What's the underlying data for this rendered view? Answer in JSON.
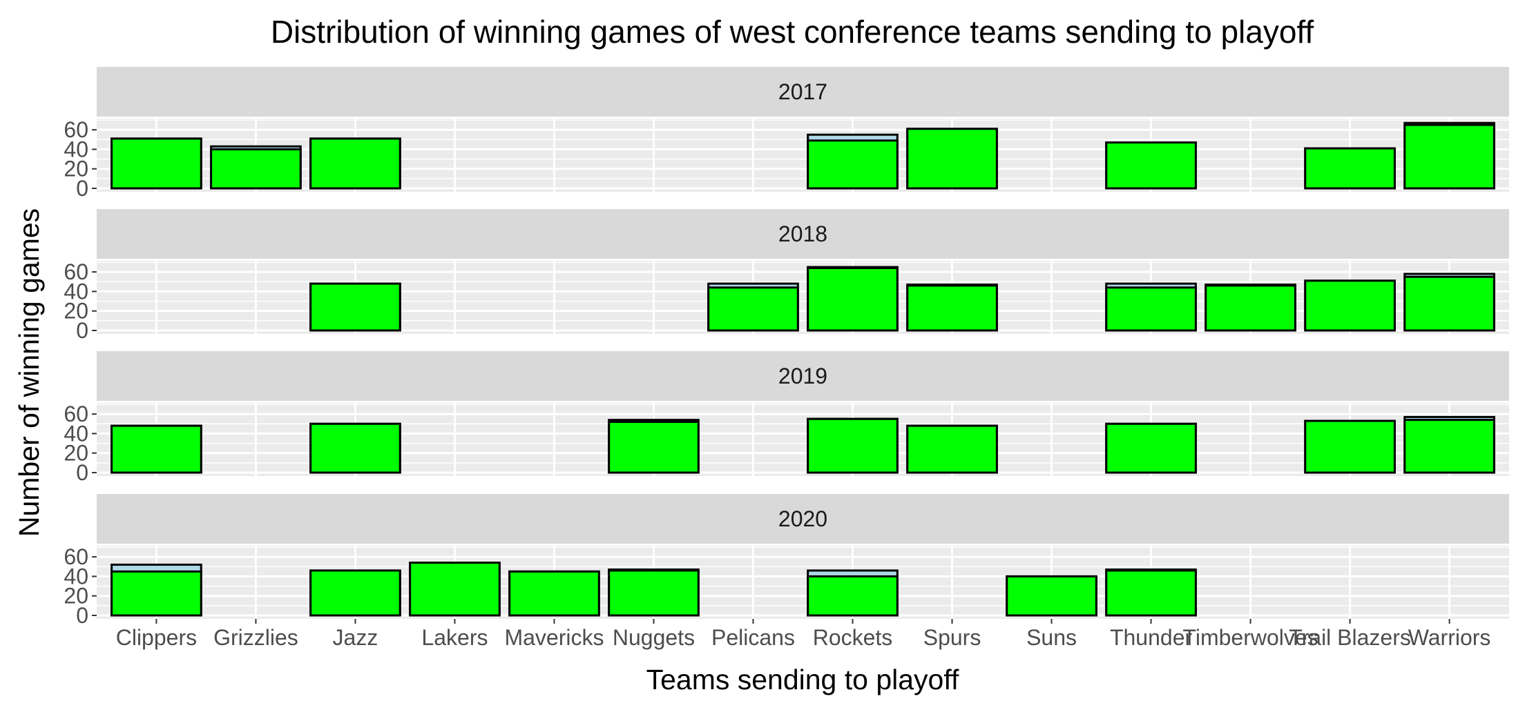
{
  "chart_data": {
    "type": "bar",
    "title": "Distribution of winning games of west conference teams sending to playoff",
    "xlabel": "Teams sending to playoff",
    "ylabel": "Number of winning games",
    "categories": [
      "Clippers",
      "Grizzlies",
      "Jazz",
      "Lakers",
      "Mavericks",
      "Nuggets",
      "Pelicans",
      "Rockets",
      "Spurs",
      "Suns",
      "Thunder",
      "Timberwolves",
      "Trail Blazers",
      "Warriors"
    ],
    "ylim": [
      0,
      70
    ],
    "yticks": [
      0,
      20,
      40,
      60
    ],
    "grid": true,
    "legend": "none",
    "facets": [
      {
        "label": "2017",
        "bars": [
          {
            "team": "Clippers",
            "outer": 51,
            "inner": 51
          },
          {
            "team": "Grizzlies",
            "outer": 43,
            "inner": 40
          },
          {
            "team": "Jazz",
            "outer": 51,
            "inner": 51
          },
          {
            "team": "Rockets",
            "outer": 55,
            "inner": 49
          },
          {
            "team": "Spurs",
            "outer": 61,
            "inner": 61
          },
          {
            "team": "Thunder",
            "outer": 47,
            "inner": 47
          },
          {
            "team": "Trail Blazers",
            "outer": 41,
            "inner": 41
          },
          {
            "team": "Warriors",
            "outer": 67,
            "inner": 65
          }
        ]
      },
      {
        "label": "2018",
        "bars": [
          {
            "team": "Jazz",
            "outer": 48,
            "inner": 48
          },
          {
            "team": "Pelicans",
            "outer": 48,
            "inner": 44
          },
          {
            "team": "Rockets",
            "outer": 65,
            "inner": 64
          },
          {
            "team": "Spurs",
            "outer": 47,
            "inner": 46
          },
          {
            "team": "Thunder",
            "outer": 48,
            "inner": 44
          },
          {
            "team": "Timberwolves",
            "outer": 47,
            "inner": 46
          },
          {
            "team": "Trail Blazers",
            "outer": 51,
            "inner": 51
          },
          {
            "team": "Warriors",
            "outer": 58,
            "inner": 55
          }
        ]
      },
      {
        "label": "2019",
        "bars": [
          {
            "team": "Clippers",
            "outer": 48,
            "inner": 48
          },
          {
            "team": "Jazz",
            "outer": 50,
            "inner": 50
          },
          {
            "team": "Nuggets",
            "outer": 54,
            "inner": 52
          },
          {
            "team": "Rockets",
            "outer": 55,
            "inner": 55
          },
          {
            "team": "Spurs",
            "outer": 48,
            "inner": 48
          },
          {
            "team": "Thunder",
            "outer": 50,
            "inner": 50
          },
          {
            "team": "Trail Blazers",
            "outer": 53,
            "inner": 53
          },
          {
            "team": "Warriors",
            "outer": 57,
            "inner": 54
          }
        ]
      },
      {
        "label": "2020",
        "bars": [
          {
            "team": "Clippers",
            "outer": 52,
            "inner": 45
          },
          {
            "team": "Jazz",
            "outer": 46,
            "inner": 46
          },
          {
            "team": "Lakers",
            "outer": 54,
            "inner": 54
          },
          {
            "team": "Mavericks",
            "outer": 45,
            "inner": 45
          },
          {
            "team": "Nuggets",
            "outer": 47,
            "inner": 46
          },
          {
            "team": "Rockets",
            "outer": 46,
            "inner": 40
          },
          {
            "team": "Suns",
            "outer": 40,
            "inner": 40
          },
          {
            "team": "Thunder",
            "outer": 47,
            "inner": 46
          }
        ]
      }
    ],
    "colors": {
      "bar_fill": "#00ff00",
      "outer_fill": "#add8e6",
      "bar_stroke": "#000000",
      "panel_bg": "#ebebeb",
      "strip_bg": "#d9d9d9",
      "grid": "#ffffff"
    }
  }
}
